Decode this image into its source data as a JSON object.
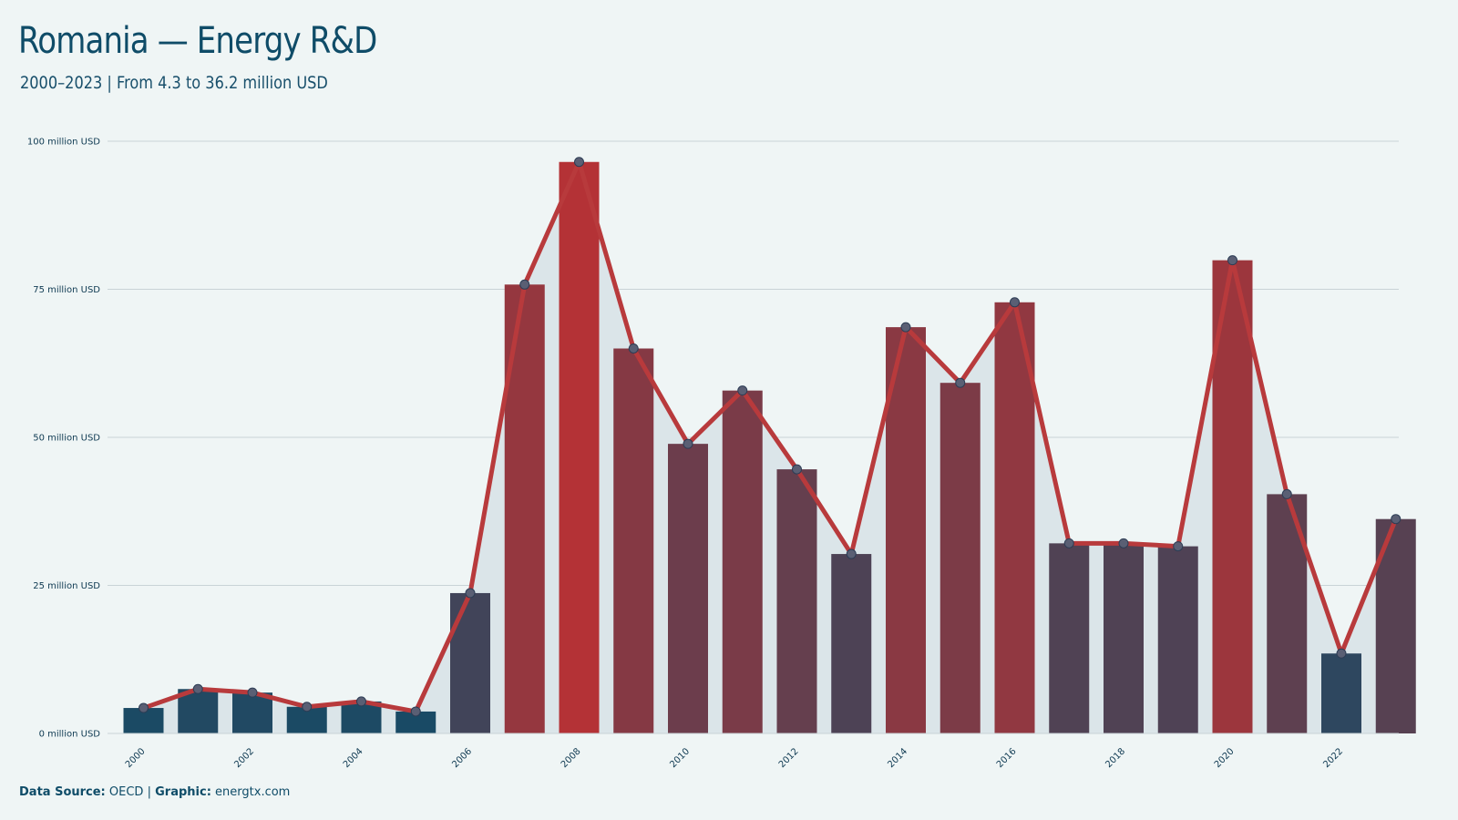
{
  "header": {
    "title": "Romania — Energy R&D",
    "subtitle": "2000–2023 | From 4.3 to 36.2 million USD"
  },
  "footer": {
    "source_label": "Data Source:",
    "source_value": "OECD",
    "separator": "|",
    "graphic_label": "Graphic:",
    "graphic_value": "energtx.com"
  },
  "colors": {
    "background": "#eff5f5",
    "low": "#0f4c68",
    "high": "#b43236",
    "line": "#b83a3c",
    "area": "#dbe5e9",
    "grid": "#c9d3d6"
  },
  "chart_data": {
    "type": "bar",
    "title": "Romania — Energy R&D",
    "subtitle": "2000–2023 | From 4.3 to 36.2 million USD",
    "categories": [
      2000,
      2001,
      2002,
      2003,
      2004,
      2005,
      2006,
      2007,
      2008,
      2009,
      2010,
      2011,
      2012,
      2013,
      2014,
      2015,
      2016,
      2017,
      2018,
      2019,
      2020,
      2021,
      2022,
      2023
    ],
    "values": [
      4.3,
      7.5,
      6.9,
      4.5,
      5.4,
      3.7,
      23.7,
      75.8,
      96.5,
      65.0,
      48.9,
      57.9,
      44.6,
      30.3,
      68.6,
      59.2,
      72.8,
      32.1,
      32.1,
      31.6,
      79.9,
      40.4,
      13.5,
      36.2
    ],
    "overlay": "line with markers and shaded area",
    "ylim": [
      0,
      100
    ],
    "yticks": [
      0,
      25,
      50,
      75,
      100
    ],
    "ytick_labels": [
      "0 million USD",
      "25 million USD",
      "50 million USD",
      "75 million USD",
      "100 million USD"
    ],
    "xtick_labels": [
      "2000",
      "2002",
      "2004",
      "2006",
      "2008",
      "2010",
      "2012",
      "2014",
      "2016",
      "2018",
      "2020",
      "2022"
    ],
    "grid": "horizontal"
  }
}
